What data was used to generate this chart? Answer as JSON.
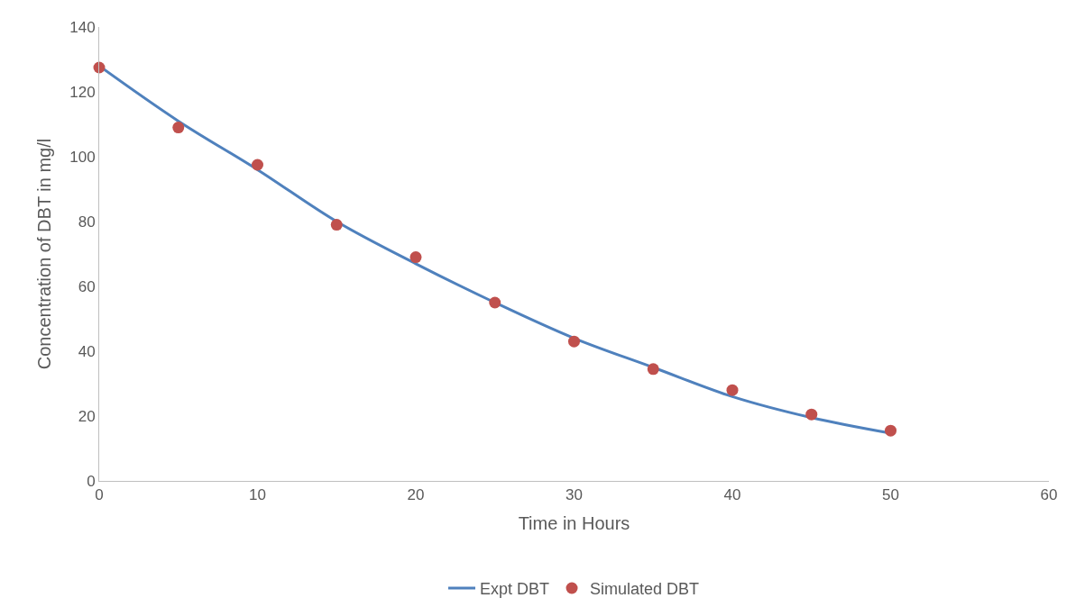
{
  "chart_data": {
    "type": "line",
    "xlabel": "Time in Hours",
    "ylabel": "Concentration of DBT in mg/l",
    "x": [
      0,
      5,
      10,
      15,
      20,
      25,
      30,
      35,
      40,
      45,
      50
    ],
    "series": [
      {
        "name": "Expt DBT",
        "color": "#4f81bd",
        "marker": "none",
        "values": [
          128,
          111,
          96,
          80,
          67,
          55,
          44,
          35,
          26,
          19.5,
          14.7
        ]
      },
      {
        "name": "Simulated DBT",
        "type": "scatter",
        "color": "#c0504d",
        "marker": "circle",
        "values": [
          127.5,
          109,
          97.5,
          79,
          69,
          55,
          43,
          34.5,
          28,
          20.5,
          15.5
        ]
      }
    ],
    "xlim": [
      0,
      60
    ],
    "xticks": [
      0,
      10,
      20,
      30,
      40,
      50,
      60
    ],
    "ylim": [
      0,
      140
    ],
    "yticks": [
      0,
      20,
      40,
      60,
      80,
      100,
      120,
      140
    ],
    "grid": false,
    "legend": "bottom"
  }
}
